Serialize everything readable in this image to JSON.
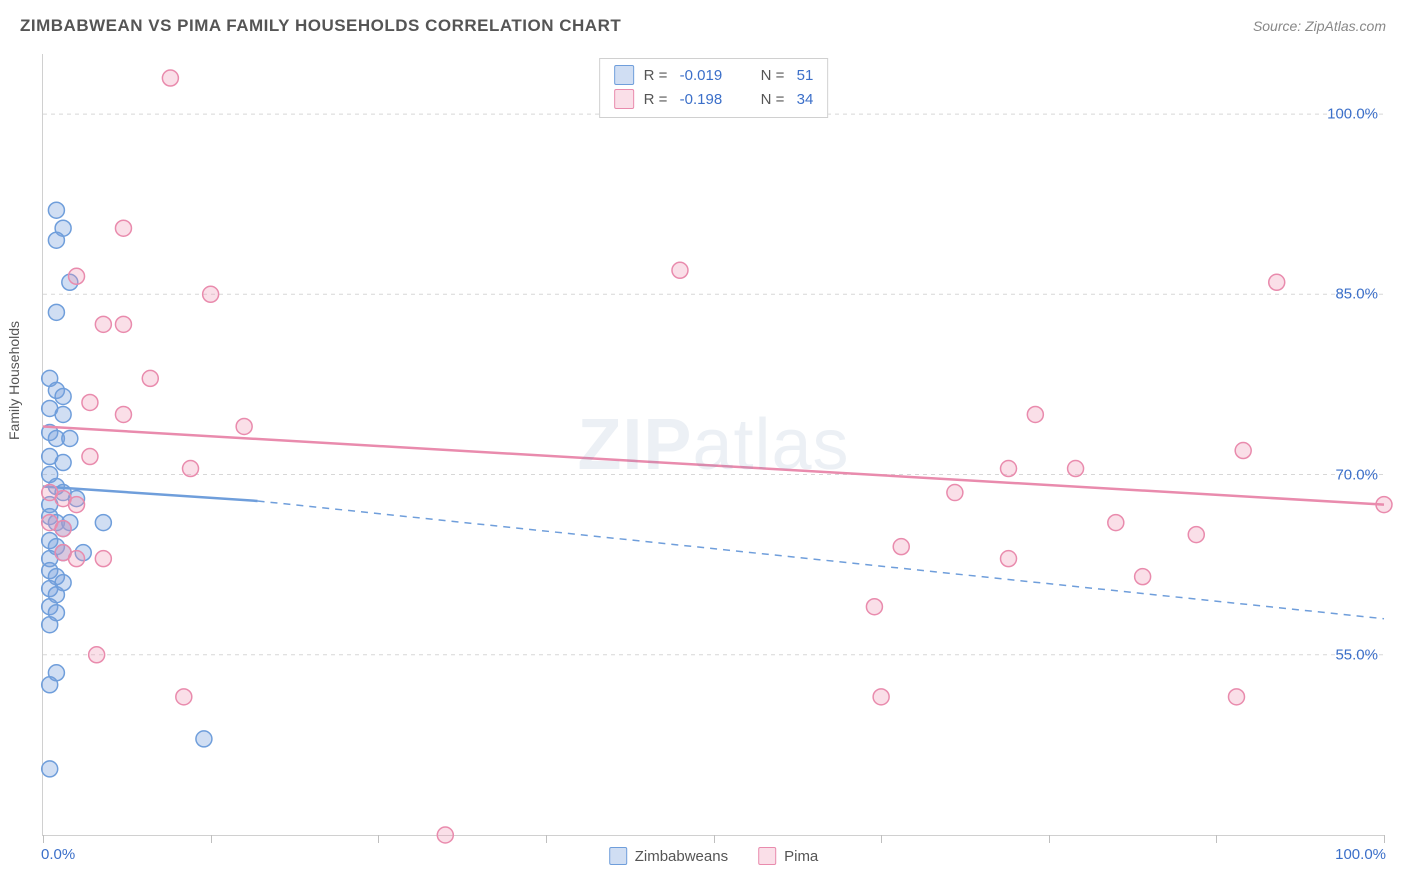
{
  "title": "ZIMBABWEAN VS PIMA FAMILY HOUSEHOLDS CORRELATION CHART",
  "source": "Source: ZipAtlas.com",
  "y_axis_label": "Family Households",
  "watermark": "ZIPatlas",
  "chart": {
    "type": "scatter-with-trend",
    "xlim": [
      0,
      100
    ],
    "ylim": [
      40,
      105
    ],
    "ytick_values": [
      55.0,
      70.0,
      85.0,
      100.0
    ],
    "ytick_labels": [
      "55.0%",
      "70.0%",
      "85.0%",
      "100.0%"
    ],
    "xtick_values": [
      0,
      12.5,
      25,
      37.5,
      50,
      62.5,
      75,
      87.5,
      100
    ],
    "x_start_label": "0.0%",
    "x_end_label": "100.0%",
    "grid_color": "#d7d7d7",
    "grid_dash": "4,4",
    "background_color": "#ffffff",
    "marker_radius": 8,
    "marker_stroke_width": 1.5,
    "line_width": 2.5
  },
  "series": {
    "zimbabweans": {
      "label": "Zimbabweans",
      "color_fill": "rgba(120,160,220,0.35)",
      "color_stroke": "#6f9edb",
      "points": [
        [
          1,
          92
        ],
        [
          1.5,
          90.5
        ],
        [
          1,
          89.5
        ],
        [
          2,
          86
        ],
        [
          1,
          83.5
        ],
        [
          0.5,
          78
        ],
        [
          1,
          77
        ],
        [
          1.5,
          76.5
        ],
        [
          0.5,
          75.5
        ],
        [
          1.5,
          75
        ],
        [
          0.5,
          73.5
        ],
        [
          1,
          73
        ],
        [
          2,
          73
        ],
        [
          0.5,
          71.5
        ],
        [
          1.5,
          71
        ],
        [
          0.5,
          70
        ],
        [
          1,
          69
        ],
        [
          1.5,
          68.5
        ],
        [
          0.5,
          67.5
        ],
        [
          2.5,
          68
        ],
        [
          0.5,
          66.5
        ],
        [
          1,
          66
        ],
        [
          1.5,
          65.5
        ],
        [
          2,
          66
        ],
        [
          4.5,
          66
        ],
        [
          0.5,
          64.5
        ],
        [
          1,
          64
        ],
        [
          1.5,
          63.5
        ],
        [
          0.5,
          63
        ],
        [
          3,
          63.5
        ],
        [
          0.5,
          62
        ],
        [
          1,
          61.5
        ],
        [
          1.5,
          61
        ],
        [
          0.5,
          60.5
        ],
        [
          1,
          60
        ],
        [
          0.5,
          59
        ],
        [
          1,
          58.5
        ],
        [
          0.5,
          57.5
        ],
        [
          1,
          53.5
        ],
        [
          0.5,
          52.5
        ],
        [
          12,
          48
        ],
        [
          0.5,
          45.5
        ]
      ],
      "trend_line": {
        "start": [
          0,
          69
        ],
        "solid_end": [
          16,
          67.8
        ],
        "dash_end": [
          100,
          58
        ]
      },
      "legend_r": "-0.019",
      "legend_n": "51"
    },
    "pima": {
      "label": "Pima",
      "color_fill": "rgba(240,150,180,0.30)",
      "color_stroke": "#e98bad",
      "points": [
        [
          9.5,
          103
        ],
        [
          6,
          90.5
        ],
        [
          2.5,
          86.5
        ],
        [
          47.5,
          87
        ],
        [
          92,
          86
        ],
        [
          12.5,
          85
        ],
        [
          4.5,
          82.5
        ],
        [
          6,
          82.5
        ],
        [
          8,
          78
        ],
        [
          3.5,
          76
        ],
        [
          6,
          75
        ],
        [
          15,
          74
        ],
        [
          74,
          75
        ],
        [
          3.5,
          71.5
        ],
        [
          11,
          70.5
        ],
        [
          72,
          70.5
        ],
        [
          77,
          70.5
        ],
        [
          89.5,
          72
        ],
        [
          0.5,
          68.5
        ],
        [
          1.5,
          68
        ],
        [
          2.5,
          67.5
        ],
        [
          68,
          68.5
        ],
        [
          0.5,
          66
        ],
        [
          1.5,
          65.5
        ],
        [
          80,
          66
        ],
        [
          86,
          65
        ],
        [
          100,
          67.5
        ],
        [
          1.5,
          63.5
        ],
        [
          2.5,
          63
        ],
        [
          4.5,
          63
        ],
        [
          64,
          64
        ],
        [
          72,
          63
        ],
        [
          82,
          61.5
        ],
        [
          62,
          59
        ],
        [
          4,
          55
        ],
        [
          10.5,
          51.5
        ],
        [
          62.5,
          51.5
        ],
        [
          89,
          51.5
        ],
        [
          30,
          40
        ]
      ],
      "trend_line": {
        "start": [
          0,
          74
        ],
        "solid_end": [
          100,
          67.5
        ],
        "dash_end": null
      },
      "legend_r": "-0.198",
      "legend_n": "34"
    }
  }
}
